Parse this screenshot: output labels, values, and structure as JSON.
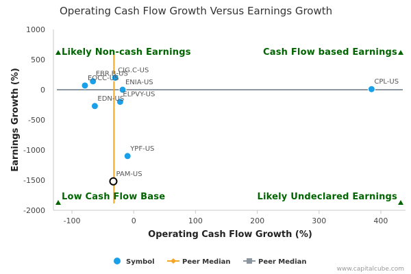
{
  "chart_data": {
    "type": "scatter",
    "title": "Operating Cash Flow Growth Versus Earnings Growth",
    "xlabel": "Operating Cash Flow Growth (%)",
    "ylabel": "Earnings Growth (%)",
    "xlim": [
      -130,
      440
    ],
    "ylim": [
      -2000,
      1000
    ],
    "x_ticks": [
      -100,
      0,
      100,
      200,
      300,
      400
    ],
    "y_ticks": [
      1000,
      500,
      0,
      -500,
      -1000,
      -1500,
      -2000
    ],
    "grid": false,
    "points": [
      {
        "label": "CIG.C-US",
        "x": -30,
        "y": 200,
        "style": "filled"
      },
      {
        "label": "EBR.B-US",
        "x": -66,
        "y": 140,
        "style": "filled"
      },
      {
        "label": "EOCC-US",
        "x": -79,
        "y": 70,
        "style": "filled"
      },
      {
        "label": "ENIA-US",
        "x": -18,
        "y": 0,
        "style": "filled"
      },
      {
        "label": "CPL-US",
        "x": 385,
        "y": 10,
        "style": "filled"
      },
      {
        "label": "ELPVY-US",
        "x": -22,
        "y": -200,
        "style": "filled"
      },
      {
        "label": "EDN-US",
        "x": -63,
        "y": -270,
        "style": "filled"
      },
      {
        "label": "YPF-US",
        "x": -10,
        "y": -1100,
        "style": "filled"
      },
      {
        "label": "PAM-US",
        "x": -33,
        "y": -1520,
        "style": "hollow"
      }
    ],
    "peer_median": {
      "x": -32,
      "y": 0
    },
    "quadrant_labels": {
      "top_left": "Likely Non-cash Earnings",
      "top_right": "Cash Flow based Earnings",
      "bottom_left": "Low Cash Flow Base",
      "bottom_right": "Likely Undeclared Earnings"
    },
    "legend": [
      "Symbol",
      "Peer Median",
      "Peer Median"
    ],
    "legend_position": "bottom",
    "colors": {
      "points": "#1aa0e8",
      "x_median": "#f5a623",
      "y_median": "#8c96a0",
      "quadrant": "#006400"
    }
  },
  "credit": "www.capitalcube.com"
}
